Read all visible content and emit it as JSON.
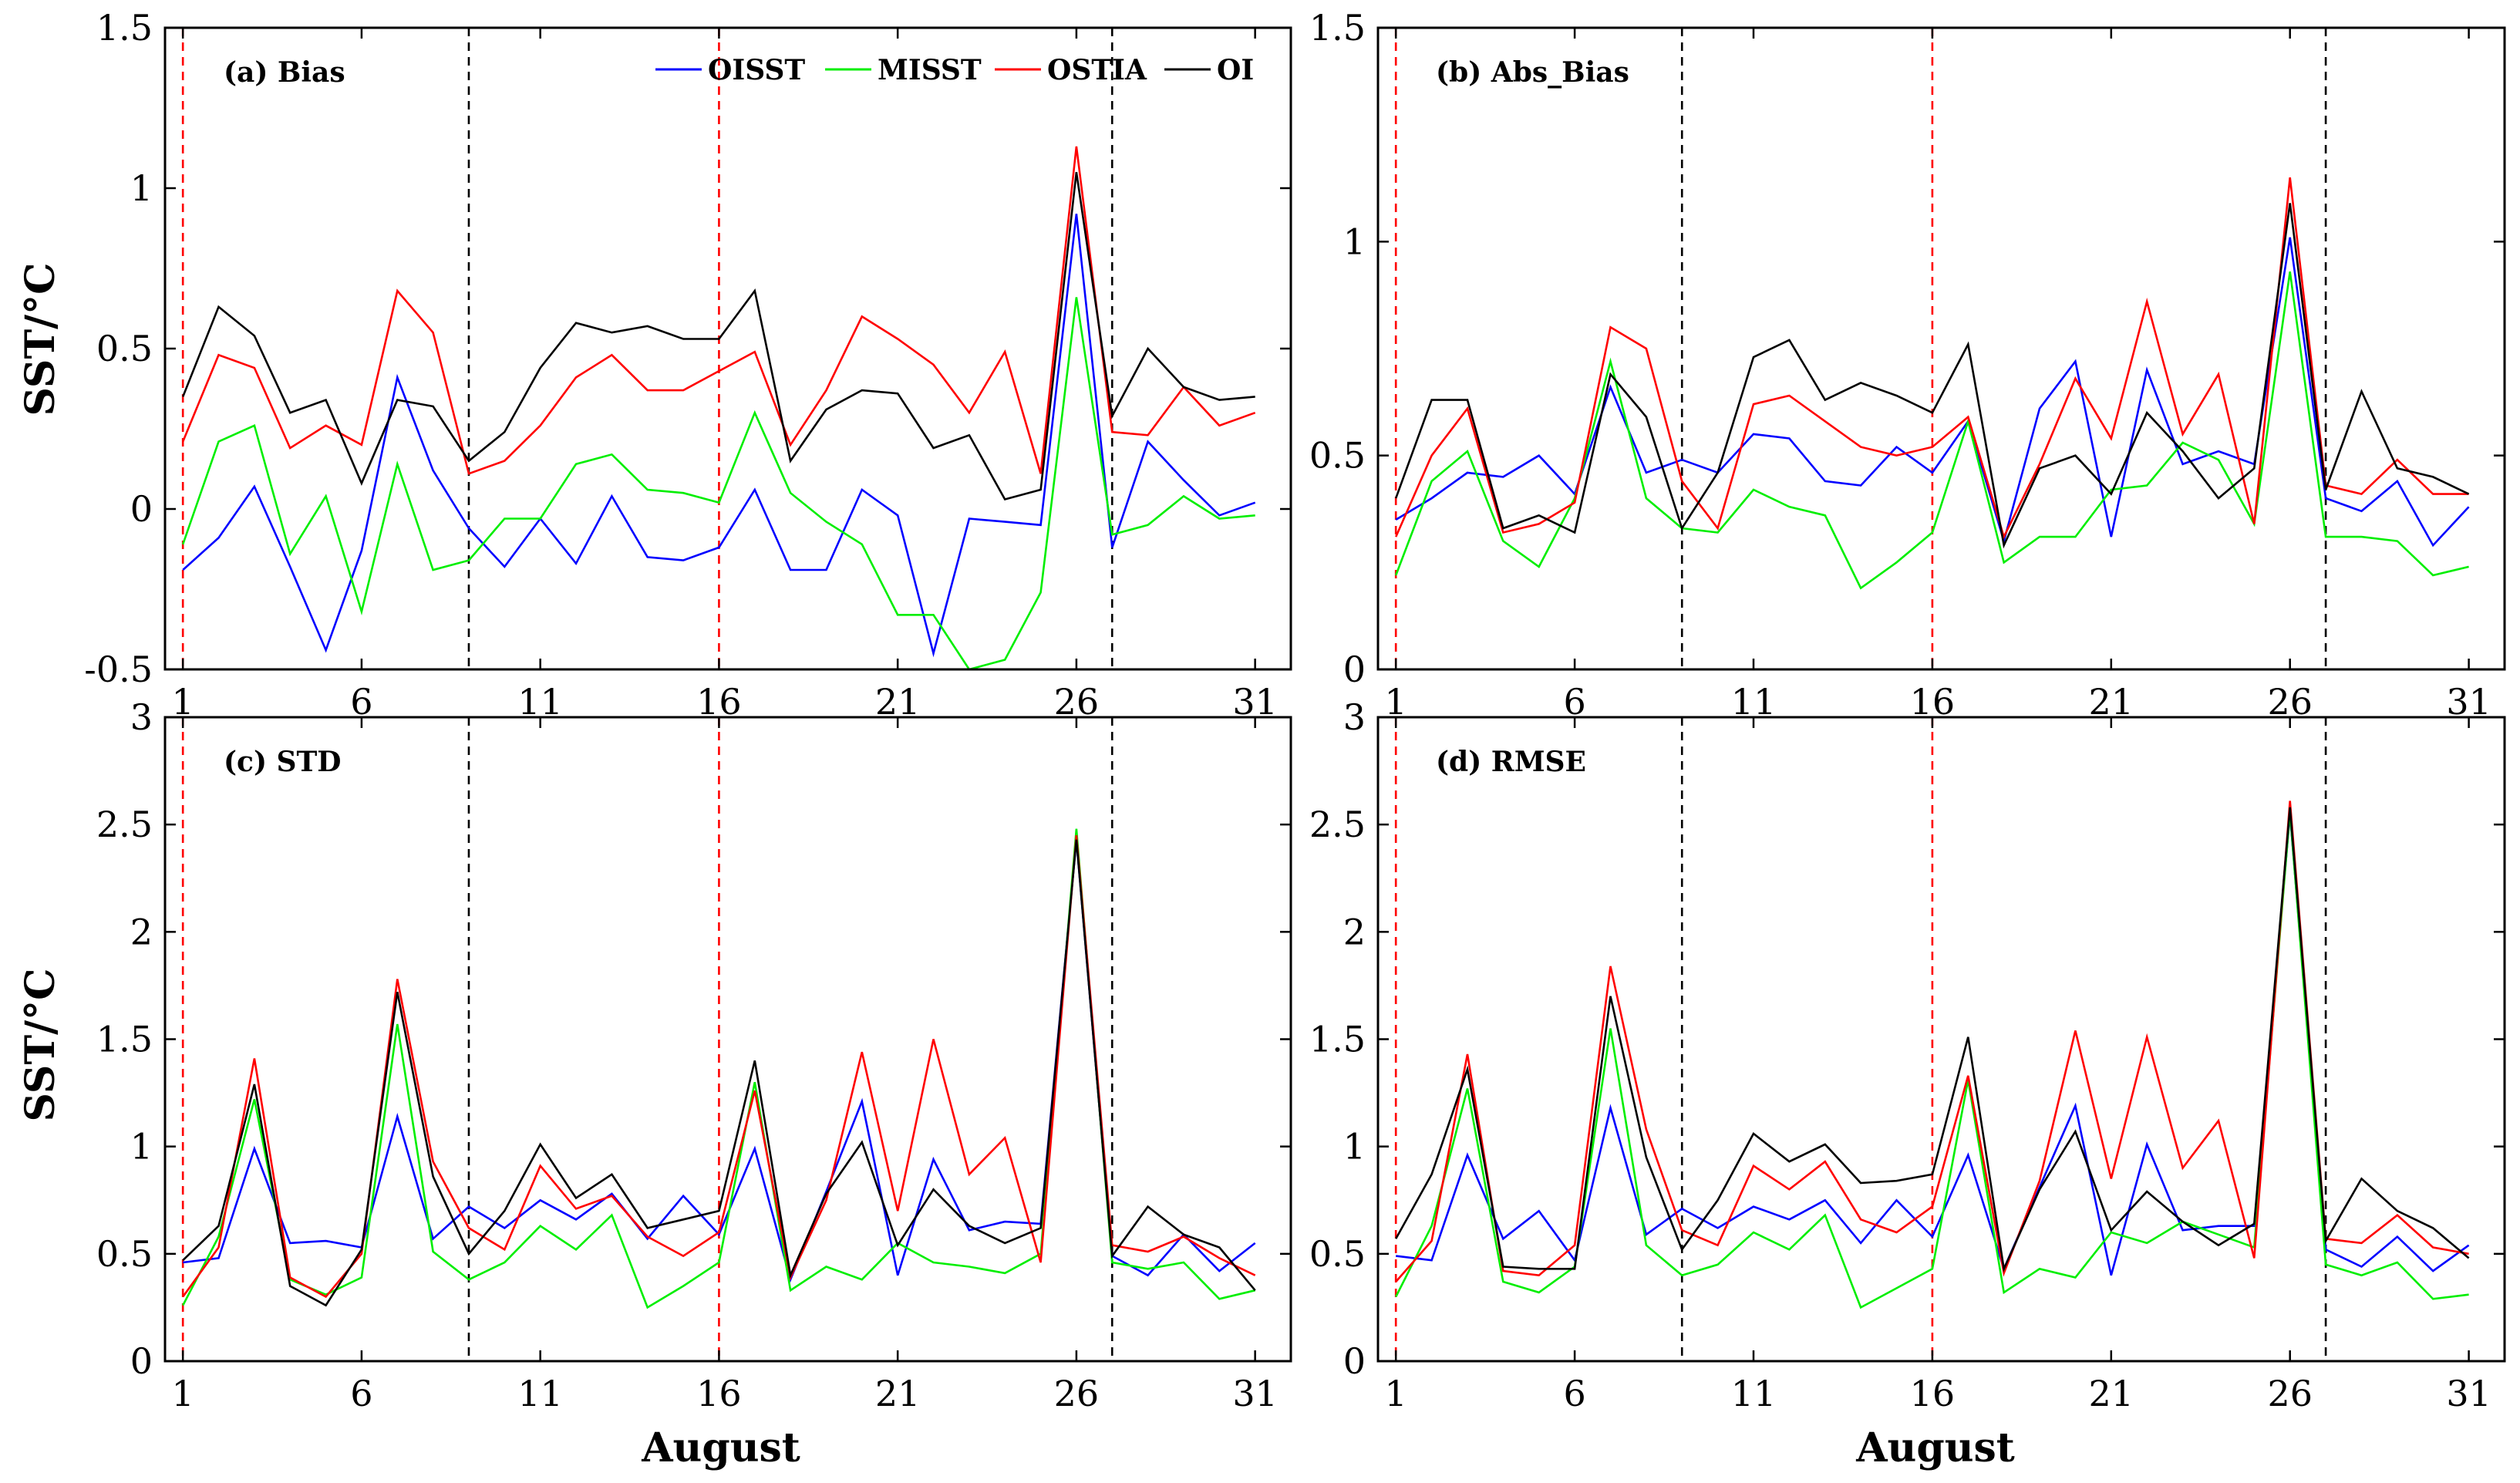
{
  "figure": {
    "xlabel": "August",
    "ylabel": "SST/°C"
  },
  "legend": [
    {
      "name": "OISST",
      "color": "#0000ff"
    },
    {
      "name": "MISST",
      "color": "#00ee00"
    },
    {
      "name": "OSTIA",
      "color": "#ff0000"
    },
    {
      "name": "OI",
      "color": "#000000"
    }
  ],
  "chart_data": [
    {
      "type": "line",
      "title": "(a) Bias",
      "xlabel": "",
      "ylabel": "SST/°C",
      "xlim": [
        0.5,
        32
      ],
      "ylim": [
        -0.5,
        1.5
      ],
      "xticks": [
        1,
        6,
        11,
        16,
        21,
        26,
        31
      ],
      "yticks": [
        -0.5,
        0,
        0.5,
        1,
        1.5
      ],
      "ytick_labels": [
        "-0.5",
        "0",
        "0.5",
        "1",
        "1.5"
      ],
      "red_dashed_x": [
        1,
        16
      ],
      "black_dashed_x": [
        9,
        27
      ],
      "x": [
        1,
        2,
        3,
        4,
        5,
        6,
        7,
        8,
        9,
        10,
        11,
        12,
        13,
        14,
        15,
        16,
        17,
        18,
        19,
        20,
        21,
        22,
        23,
        24,
        25,
        26,
        27,
        28,
        29,
        30,
        31
      ],
      "series": [
        {
          "name": "OISST",
          "color": "#0000ff",
          "values": [
            -0.19,
            -0.09,
            0.07,
            -0.18,
            -0.44,
            -0.13,
            0.41,
            0.12,
            -0.06,
            -0.18,
            -0.03,
            -0.17,
            0.04,
            -0.15,
            -0.16,
            -0.12,
            0.06,
            -0.19,
            -0.19,
            0.06,
            -0.02,
            -0.45,
            -0.03,
            -0.04,
            -0.05,
            0.92,
            -0.12,
            0.21,
            0.09,
            -0.02,
            0.02
          ]
        },
        {
          "name": "MISST",
          "color": "#00ee00",
          "values": [
            -0.11,
            0.21,
            0.26,
            -0.14,
            0.04,
            -0.32,
            0.14,
            -0.19,
            -0.16,
            -0.03,
            -0.03,
            0.14,
            0.17,
            0.06,
            0.05,
            0.02,
            0.3,
            0.05,
            -0.04,
            -0.11,
            -0.33,
            -0.33,
            -0.5,
            -0.47,
            -0.26,
            0.66,
            -0.08,
            -0.05,
            0.04,
            -0.03,
            -0.02
          ]
        },
        {
          "name": "OSTIA",
          "color": "#ff0000",
          "values": [
            0.21,
            0.48,
            0.44,
            0.19,
            0.26,
            0.2,
            0.68,
            0.55,
            0.11,
            0.15,
            0.26,
            0.41,
            0.48,
            0.37,
            0.37,
            0.43,
            0.49,
            0.2,
            0.37,
            0.6,
            0.53,
            0.45,
            0.3,
            0.49,
            0.11,
            1.13,
            0.24,
            0.23,
            0.38,
            0.26,
            0.3
          ]
        },
        {
          "name": "OI",
          "color": "#000000",
          "values": [
            0.35,
            0.63,
            0.54,
            0.3,
            0.34,
            0.08,
            0.34,
            0.32,
            0.15,
            0.24,
            0.44,
            0.58,
            0.55,
            0.57,
            0.53,
            0.53,
            0.68,
            0.15,
            0.31,
            0.37,
            0.36,
            0.19,
            0.23,
            0.03,
            0.06,
            1.05,
            0.29,
            0.5,
            0.38,
            0.34,
            0.35
          ]
        }
      ]
    },
    {
      "type": "line",
      "title": "(b) Abs_Bias",
      "xlabel": "",
      "ylabel": "",
      "xlim": [
        0.5,
        32
      ],
      "ylim": [
        0,
        1.5
      ],
      "xticks": [
        1,
        6,
        11,
        16,
        21,
        26,
        31
      ],
      "yticks": [
        0,
        0.5,
        1,
        1.5
      ],
      "ytick_labels": [
        "0",
        "0.5",
        "1",
        "1.5"
      ],
      "red_dashed_x": [
        1,
        16
      ],
      "black_dashed_x": [
        9,
        27
      ],
      "x": [
        1,
        2,
        3,
        4,
        5,
        6,
        7,
        8,
        9,
        10,
        11,
        12,
        13,
        14,
        15,
        16,
        17,
        18,
        19,
        20,
        21,
        22,
        23,
        24,
        25,
        26,
        27,
        28,
        29,
        30,
        31
      ],
      "series": [
        {
          "name": "OISST",
          "color": "#0000ff",
          "values": [
            0.35,
            0.4,
            0.46,
            0.45,
            0.5,
            0.41,
            0.66,
            0.46,
            0.49,
            0.46,
            0.55,
            0.54,
            0.44,
            0.43,
            0.52,
            0.46,
            0.58,
            0.3,
            0.61,
            0.72,
            0.31,
            0.7,
            0.48,
            0.51,
            0.48,
            1.01,
            0.4,
            0.37,
            0.44,
            0.29,
            0.38
          ]
        },
        {
          "name": "MISST",
          "color": "#00ee00",
          "values": [
            0.22,
            0.44,
            0.51,
            0.3,
            0.24,
            0.4,
            0.72,
            0.4,
            0.33,
            0.32,
            0.42,
            0.38,
            0.36,
            0.19,
            0.25,
            0.32,
            0.58,
            0.25,
            0.31,
            0.31,
            0.42,
            0.43,
            0.53,
            0.49,
            0.34,
            0.93,
            0.31,
            0.31,
            0.3,
            0.22,
            0.24
          ]
        },
        {
          "name": "OSTIA",
          "color": "#ff0000",
          "values": [
            0.31,
            0.5,
            0.61,
            0.32,
            0.34,
            0.39,
            0.8,
            0.75,
            0.44,
            0.33,
            0.62,
            0.64,
            0.58,
            0.52,
            0.5,
            0.52,
            0.59,
            0.31,
            0.48,
            0.68,
            0.54,
            0.86,
            0.55,
            0.69,
            0.34,
            1.15,
            0.43,
            0.41,
            0.49,
            0.41,
            0.41
          ]
        },
        {
          "name": "OI",
          "color": "#000000",
          "values": [
            0.4,
            0.63,
            0.63,
            0.33,
            0.36,
            0.32,
            0.69,
            0.59,
            0.33,
            0.46,
            0.73,
            0.77,
            0.63,
            0.67,
            0.64,
            0.6,
            0.76,
            0.29,
            0.47,
            0.5,
            0.41,
            0.6,
            0.51,
            0.4,
            0.47,
            1.09,
            0.42,
            0.65,
            0.47,
            0.45,
            0.41
          ]
        }
      ]
    },
    {
      "type": "line",
      "title": "(c) STD",
      "xlabel": "August",
      "ylabel": "SST/°C",
      "xlim": [
        0.5,
        32
      ],
      "ylim": [
        0,
        3
      ],
      "xticks": [
        1,
        6,
        11,
        16,
        21,
        26,
        31
      ],
      "yticks": [
        0,
        0.5,
        1,
        1.5,
        2,
        2.5,
        3
      ],
      "ytick_labels": [
        "0",
        "0.5",
        "1",
        "1.5",
        "2",
        "2.5",
        "3"
      ],
      "red_dashed_x": [
        1,
        16
      ],
      "black_dashed_x": [
        9,
        27
      ],
      "x": [
        1,
        2,
        3,
        4,
        5,
        6,
        7,
        8,
        9,
        10,
        11,
        12,
        13,
        14,
        15,
        16,
        17,
        18,
        19,
        20,
        21,
        22,
        23,
        24,
        25,
        26,
        27,
        28,
        29,
        30,
        31
      ],
      "series": [
        {
          "name": "OISST",
          "color": "#0000ff",
          "values": [
            0.46,
            0.48,
            0.99,
            0.55,
            0.56,
            0.53,
            1.14,
            0.57,
            0.72,
            0.62,
            0.75,
            0.66,
            0.78,
            0.57,
            0.77,
            0.59,
            0.99,
            0.38,
            0.79,
            1.21,
            0.4,
            0.94,
            0.61,
            0.65,
            0.64,
            2.43,
            0.49,
            0.4,
            0.59,
            0.42,
            0.55
          ]
        },
        {
          "name": "MISST",
          "color": "#00ee00",
          "values": [
            0.26,
            0.58,
            1.22,
            0.38,
            0.31,
            0.39,
            1.57,
            0.51,
            0.38,
            0.46,
            0.63,
            0.52,
            0.68,
            0.25,
            0.35,
            0.46,
            1.3,
            0.33,
            0.44,
            0.38,
            0.55,
            0.46,
            0.44,
            0.41,
            0.5,
            2.48,
            0.46,
            0.43,
            0.46,
            0.29,
            0.33
          ]
        },
        {
          "name": "OSTIA",
          "color": "#ff0000",
          "values": [
            0.3,
            0.53,
            1.41,
            0.39,
            0.3,
            0.5,
            1.78,
            0.93,
            0.62,
            0.52,
            0.91,
            0.71,
            0.77,
            0.58,
            0.49,
            0.6,
            1.26,
            0.39,
            0.75,
            1.44,
            0.7,
            1.5,
            0.87,
            1.04,
            0.46,
            2.45,
            0.54,
            0.51,
            0.58,
            0.48,
            0.4
          ]
        },
        {
          "name": "OI",
          "color": "#000000",
          "values": [
            0.47,
            0.63,
            1.29,
            0.35,
            0.26,
            0.52,
            1.72,
            0.86,
            0.5,
            0.7,
            1.01,
            0.76,
            0.87,
            0.62,
            0.66,
            0.7,
            1.4,
            0.4,
            0.78,
            1.02,
            0.54,
            0.8,
            0.63,
            0.55,
            0.62,
            2.43,
            0.49,
            0.72,
            0.59,
            0.53,
            0.33
          ]
        }
      ]
    },
    {
      "type": "line",
      "title": "(d) RMSE",
      "xlabel": "August",
      "ylabel": "",
      "xlim": [
        0.5,
        32
      ],
      "ylim": [
        0,
        3
      ],
      "xticks": [
        1,
        6,
        11,
        16,
        21,
        26,
        31
      ],
      "yticks": [
        0,
        0.5,
        1,
        1.5,
        2,
        2.5,
        3
      ],
      "ytick_labels": [
        "0",
        "0.5",
        "1",
        "1.5",
        "2",
        "2.5",
        "3"
      ],
      "red_dashed_x": [
        1,
        16
      ],
      "black_dashed_x": [
        9,
        27
      ],
      "x": [
        1,
        2,
        3,
        4,
        5,
        6,
        7,
        8,
        9,
        10,
        11,
        12,
        13,
        14,
        15,
        16,
        17,
        18,
        19,
        20,
        21,
        22,
        23,
        24,
        25,
        26,
        27,
        28,
        29,
        30,
        31
      ],
      "series": [
        {
          "name": "OISST",
          "color": "#0000ff",
          "values": [
            0.49,
            0.47,
            0.96,
            0.57,
            0.7,
            0.47,
            1.18,
            0.59,
            0.71,
            0.62,
            0.72,
            0.66,
            0.75,
            0.55,
            0.75,
            0.58,
            0.96,
            0.43,
            0.81,
            1.19,
            0.4,
            1.01,
            0.61,
            0.63,
            0.63,
            2.55,
            0.52,
            0.44,
            0.58,
            0.42,
            0.54
          ]
        },
        {
          "name": "MISST",
          "color": "#00ee00",
          "values": [
            0.3,
            0.63,
            1.27,
            0.37,
            0.32,
            0.44,
            1.55,
            0.54,
            0.4,
            0.45,
            0.6,
            0.52,
            0.68,
            0.25,
            0.34,
            0.43,
            1.31,
            0.32,
            0.43,
            0.39,
            0.6,
            0.55,
            0.65,
            0.59,
            0.53,
            2.56,
            0.45,
            0.4,
            0.46,
            0.29,
            0.31
          ]
        },
        {
          "name": "OSTIA",
          "color": "#ff0000",
          "values": [
            0.37,
            0.56,
            1.43,
            0.42,
            0.4,
            0.54,
            1.84,
            1.08,
            0.61,
            0.54,
            0.91,
            0.8,
            0.93,
            0.66,
            0.6,
            0.72,
            1.33,
            0.41,
            0.84,
            1.54,
            0.85,
            1.51,
            0.9,
            1.12,
            0.48,
            2.61,
            0.57,
            0.55,
            0.68,
            0.53,
            0.5
          ]
        },
        {
          "name": "OI",
          "color": "#000000",
          "values": [
            0.57,
            0.87,
            1.36,
            0.44,
            0.43,
            0.43,
            1.7,
            0.95,
            0.52,
            0.75,
            1.06,
            0.93,
            1.01,
            0.83,
            0.84,
            0.87,
            1.51,
            0.43,
            0.8,
            1.07,
            0.61,
            0.79,
            0.65,
            0.54,
            0.64,
            2.58,
            0.56,
            0.85,
            0.7,
            0.62,
            0.48
          ]
        }
      ]
    }
  ]
}
